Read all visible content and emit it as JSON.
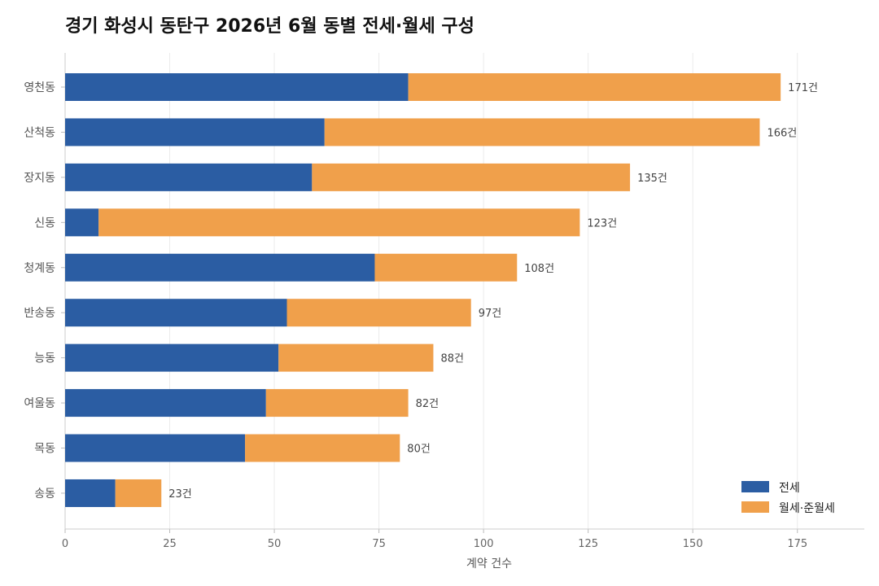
{
  "chart_data": {
    "type": "bar",
    "orientation": "horizontal",
    "stacked": true,
    "title": "경기 화성시 동탄구 2026년 6월 동별 전세·월세 구성",
    "xlabel": "계약 건수",
    "ylabel": "",
    "xlim": [
      0,
      191
    ],
    "xticks": [
      0,
      25,
      50,
      75,
      100,
      125,
      150,
      175
    ],
    "grid": "vertical",
    "legend_position": "bottom-right",
    "categories": [
      "영천동",
      "산척동",
      "장지동",
      "신동",
      "청계동",
      "반송동",
      "능동",
      "여울동",
      "목동",
      "송동"
    ],
    "series": [
      {
        "name": "전세",
        "color": "#2b5da3",
        "values": [
          82,
          62,
          59,
          8,
          74,
          53,
          51,
          48,
          43,
          12
        ]
      },
      {
        "name": "월세·준월세",
        "color": "#f0a04b",
        "values": [
          89,
          104,
          76,
          115,
          34,
          44,
          37,
          34,
          37,
          11
        ]
      }
    ],
    "totals": [
      171,
      166,
      135,
      123,
      108,
      97,
      88,
      82,
      80,
      23
    ],
    "total_labels": [
      "171건",
      "166건",
      "135건",
      "123건",
      "108건",
      "97건",
      "88건",
      "82건",
      "80건",
      "23건"
    ]
  }
}
